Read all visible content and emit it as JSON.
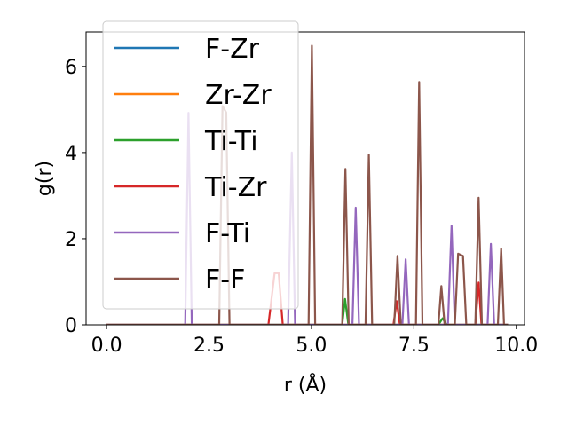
{
  "chart_data": {
    "type": "line",
    "title": "",
    "xlabel": "r (Å)",
    "ylabel": "g(r)",
    "xlim": [
      -0.5,
      10.2
    ],
    "ylim": [
      0,
      6.8
    ],
    "xticks": [
      0.0,
      2.5,
      5.0,
      7.5,
      10.0
    ],
    "xtick_labels": [
      "0.0",
      "2.5",
      "5.0",
      "7.5",
      "10.0"
    ],
    "yticks": [
      0,
      2,
      4,
      6
    ],
    "ytick_labels": [
      "0",
      "2",
      "4",
      "6"
    ],
    "grid": false,
    "legend_position": "top-left",
    "series": [
      {
        "name": "F-Zr",
        "color": "#1f77b4",
        "x": [
          0,
          9.8
        ],
        "y": [
          0,
          0
        ]
      },
      {
        "name": "Zr-Zr",
        "color": "#ff7f0e",
        "x": [
          0,
          9.8
        ],
        "y": [
          0,
          0
        ]
      },
      {
        "name": "Ti-Ti",
        "color": "#2ca02c",
        "x": [
          0,
          5.75,
          5.82,
          5.9,
          8.1,
          8.2,
          8.3,
          9.8
        ],
        "y": [
          0,
          0,
          0.6,
          0,
          0,
          0.15,
          0,
          0
        ]
      },
      {
        "name": "Ti-Zr",
        "color": "#d62728",
        "x": [
          0,
          3.95,
          4.1,
          4.2,
          4.3,
          7.0,
          7.08,
          7.16,
          9.0,
          9.08,
          9.15,
          9.8
        ],
        "y": [
          0,
          0,
          1.2,
          1.2,
          0,
          0,
          0.55,
          0,
          0,
          0.98,
          0,
          0
        ]
      },
      {
        "name": "F-Ti",
        "color": "#9467bd",
        "x": [
          0,
          1.92,
          2.0,
          2.08,
          2.9,
          4.43,
          4.52,
          4.6,
          6.0,
          6.08,
          6.16,
          7.22,
          7.3,
          7.38,
          8.33,
          8.42,
          8.5,
          9.3,
          9.38,
          9.46,
          9.8
        ],
        "y": [
          0,
          0,
          4.92,
          0,
          0,
          0,
          4.0,
          0,
          0,
          2.72,
          0,
          0,
          1.52,
          0,
          0,
          2.3,
          0,
          0,
          1.88,
          0,
          0
        ]
      },
      {
        "name": "F-F",
        "color": "#8c564b",
        "x": [
          0,
          2.75,
          2.83,
          2.92,
          3.0,
          4.93,
          5.01,
          5.09,
          5.75,
          5.83,
          5.91,
          6.32,
          6.4,
          6.48,
          7.02,
          7.1,
          7.18,
          7.55,
          7.63,
          7.71,
          8.1,
          8.17,
          8.25,
          8.5,
          8.58,
          8.7,
          8.78,
          9.0,
          9.08,
          9.16,
          9.55,
          9.63,
          9.7,
          9.8
        ],
        "y": [
          0,
          0,
          5.08,
          4.93,
          0,
          0,
          6.48,
          0,
          0,
          3.62,
          0,
          0,
          3.95,
          0,
          0,
          1.6,
          0,
          0,
          5.64,
          0,
          0,
          0.9,
          0,
          0,
          1.65,
          1.6,
          0,
          0,
          2.95,
          0,
          0,
          1.77,
          0,
          0
        ]
      }
    ]
  }
}
